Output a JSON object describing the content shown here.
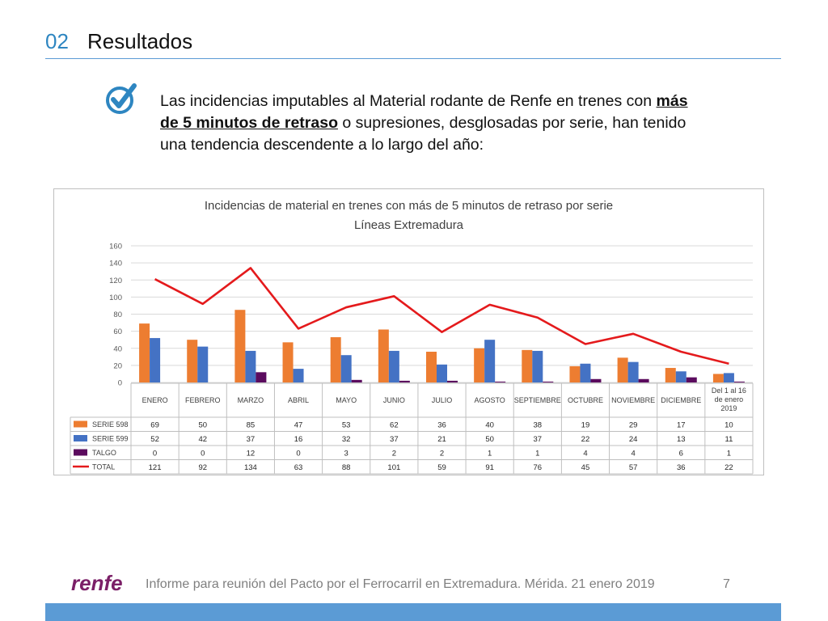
{
  "header": {
    "number": "02",
    "title": "Resultados"
  },
  "intro": {
    "before": "Las incidencias imputables al Material rodante de Renfe en trenes con ",
    "bold": "más de 5 minutos de retraso",
    "after": " o supresiones, desglosadas por serie, han tenido una tendencia descendente a lo largo del año:"
  },
  "chart_data": {
    "type": "bar",
    "title": "Incidencias de material en trenes con más de 5 minutos de retraso por serie",
    "subtitle": "Líneas Extremadura",
    "categories": [
      "ENERO",
      "FEBRERO",
      "MARZO",
      "ABRIL",
      "MAYO",
      "JUNIO",
      "JULIO",
      "AGOSTO",
      "SEPTIEMBRE",
      "OCTUBRE",
      "NOVIEMBRE",
      "DICIEMBRE",
      "Del 1 al 16 de enero 2019"
    ],
    "ylim": [
      0,
      160
    ],
    "yticks": [
      0,
      20,
      40,
      60,
      80,
      100,
      120,
      140,
      160
    ],
    "grid": true,
    "series": [
      {
        "name": "SERIE 598",
        "kind": "bar",
        "color": "#ed7d31",
        "values": [
          69,
          50,
          85,
          47,
          53,
          62,
          36,
          40,
          38,
          19,
          29,
          17,
          10
        ]
      },
      {
        "name": "SERIE 599",
        "kind": "bar",
        "color": "#4472c4",
        "values": [
          52,
          42,
          37,
          16,
          32,
          37,
          21,
          50,
          37,
          22,
          24,
          13,
          11
        ]
      },
      {
        "name": "TALGO",
        "kind": "bar",
        "color": "#5b0b5e",
        "values": [
          0,
          0,
          12,
          0,
          3,
          2,
          2,
          1,
          1,
          4,
          4,
          6,
          1
        ]
      },
      {
        "name": "TOTAL",
        "kind": "line",
        "color": "#e41a1c",
        "values": [
          121,
          92,
          134,
          63,
          88,
          101,
          59,
          91,
          76,
          45,
          57,
          36,
          22
        ]
      }
    ]
  },
  "footer": {
    "logo": "renfe",
    "text": "Informe para reunión del Pacto por el Ferrocarril en Extremadura. Mérida. 21 enero 2019",
    "page": "7"
  },
  "colors": {
    "accent": "#2e86c1",
    "bar": "#5b9bd5",
    "logo": "#7b1f67"
  }
}
